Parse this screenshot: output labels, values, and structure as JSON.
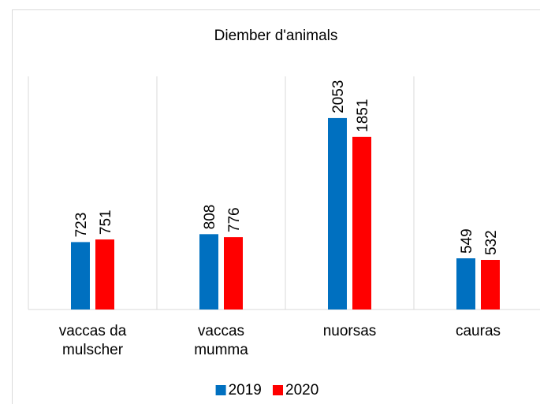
{
  "chart_data": {
    "type": "bar",
    "title": "Diember d'animals",
    "categories": [
      "vaccas da mulscher",
      "vaccas mumma",
      "nuorsas",
      "cauras"
    ],
    "series": [
      {
        "name": "2019",
        "color": "#0070c0",
        "values": [
          723,
          808,
          2053,
          549
        ]
      },
      {
        "name": "2020",
        "color": "#ff0000",
        "values": [
          751,
          776,
          1851,
          532
        ]
      }
    ],
    "ylim": [
      0,
      2500
    ],
    "legend": "bottom"
  }
}
